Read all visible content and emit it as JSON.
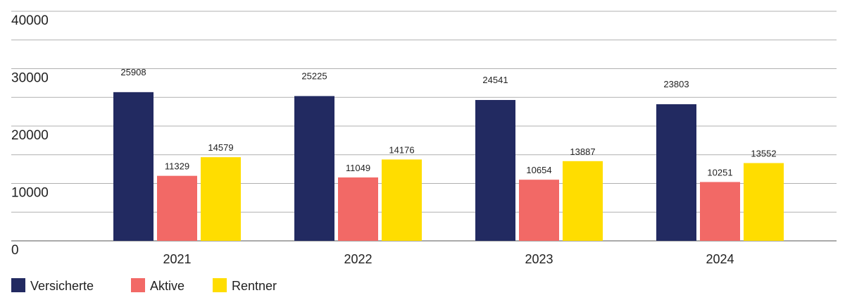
{
  "chart_data": {
    "type": "bar",
    "title": "",
    "xlabel": "",
    "ylabel": "",
    "categories": [
      "2021",
      "2022",
      "2023",
      "2024"
    ],
    "series": [
      {
        "name": "Versicherte",
        "color": "#222a61",
        "values": [
          25908,
          25225,
          24541,
          23803
        ]
      },
      {
        "name": "Aktive",
        "color": "#f26966",
        "values": [
          11329,
          11049,
          10654,
          10251
        ]
      },
      {
        "name": "Rentner",
        "color": "#ffdd00",
        "values": [
          14579,
          14176,
          13887,
          13552
        ]
      }
    ],
    "value_labels": [
      [
        "25908",
        "25225",
        "24541",
        "23803"
      ],
      [
        "11329",
        "11049",
        "10654",
        "10251"
      ],
      [
        "14579",
        "14176",
        "13887",
        "13552"
      ]
    ],
    "ylim": [
      0,
      40000
    ],
    "yticks": [
      0,
      10000,
      20000,
      30000,
      40000
    ],
    "ytick_labels": [
      "0",
      "10000",
      "20000",
      "30000",
      "40000"
    ],
    "grid": true,
    "legend": "bottom-left"
  }
}
